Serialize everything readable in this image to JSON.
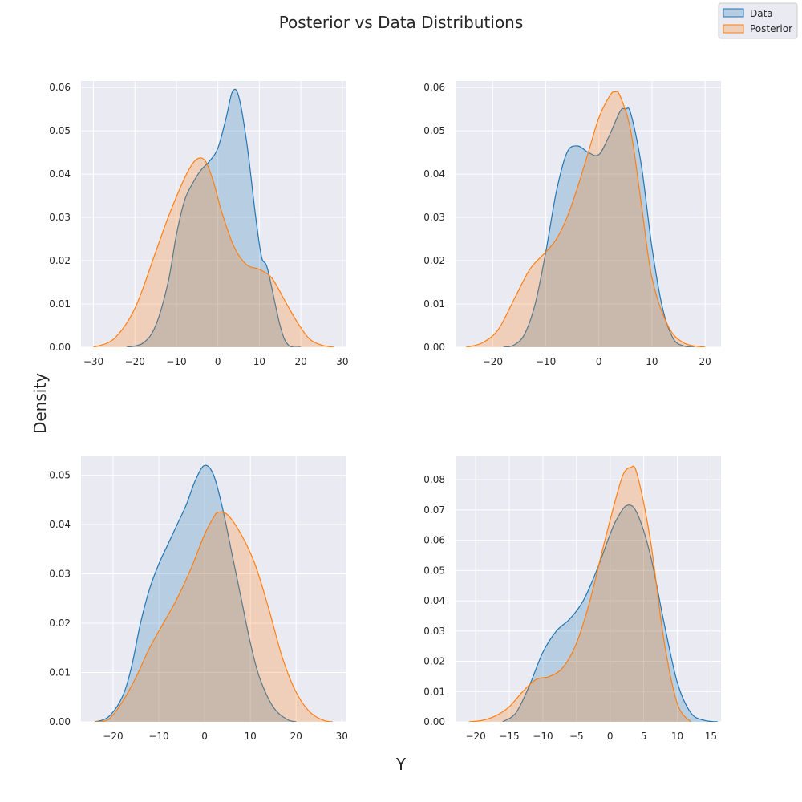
{
  "figure": {
    "title": "Posterior vs Data Distributions",
    "xlabel": "Y",
    "ylabel": "Density"
  },
  "legend": {
    "placement": "top-right",
    "items": [
      {
        "label": "Data",
        "color": "#1f77b4"
      },
      {
        "label": "Posterior",
        "color": "#ff7f0e"
      }
    ]
  },
  "colors": {
    "data": "#1f77b4",
    "posterior": "#ff7f0e",
    "axes_bg": "#eaeaf2",
    "grid": "#ffffff"
  },
  "chart_data": [
    {
      "type": "area",
      "grid": true,
      "xlim": [
        -33,
        31
      ],
      "ylim": [
        0,
        0.0615
      ],
      "xticks": [
        -30,
        -20,
        -10,
        0,
        10,
        20,
        30
      ],
      "xtick_labels": [
        "−30",
        "−20",
        "−10",
        "0",
        "10",
        "20",
        "30"
      ],
      "yticks": [
        0,
        0.01,
        0.02,
        0.03,
        0.04,
        0.05,
        0.06
      ],
      "ytick_labels": [
        "0.00",
        "0.01",
        "0.02",
        "0.03",
        "0.04",
        "0.05",
        "0.06"
      ],
      "series": [
        {
          "name": "Data",
          "x": [
            -22,
            -18,
            -15,
            -12,
            -10,
            -8,
            -6,
            -4,
            -2,
            0,
            2,
            3.5,
            5,
            7,
            9,
            10.5,
            12,
            15,
            17,
            20
          ],
          "y": [
            0,
            0.001,
            0.005,
            0.015,
            0.026,
            0.034,
            0.038,
            0.041,
            0.043,
            0.046,
            0.053,
            0.059,
            0.058,
            0.047,
            0.031,
            0.021,
            0.018,
            0.005,
            0.0005,
            0
          ]
        },
        {
          "name": "Posterior",
          "x": [
            -30,
            -25,
            -20,
            -15,
            -12,
            -9,
            -7,
            -5,
            -3,
            -1,
            1,
            4,
            7,
            10,
            13,
            16,
            19,
            22,
            25,
            28
          ],
          "y": [
            0,
            0.002,
            0.009,
            0.022,
            0.03,
            0.037,
            0.041,
            0.0435,
            0.043,
            0.038,
            0.031,
            0.023,
            0.019,
            0.018,
            0.016,
            0.011,
            0.006,
            0.002,
            0.0005,
            0
          ]
        }
      ]
    },
    {
      "type": "area",
      "grid": true,
      "xlim": [
        -27,
        23
      ],
      "ylim": [
        0,
        0.0615
      ],
      "xticks": [
        -20,
        -10,
        0,
        10,
        20
      ],
      "xtick_labels": [
        "−20",
        "−10",
        "0",
        "10",
        "20"
      ],
      "yticks": [
        0,
        0.01,
        0.02,
        0.03,
        0.04,
        0.05,
        0.06
      ],
      "ytick_labels": [
        "0.00",
        "0.01",
        "0.02",
        "0.03",
        "0.04",
        "0.05",
        "0.06"
      ],
      "series": [
        {
          "name": "Data",
          "x": [
            -18,
            -16,
            -14,
            -12,
            -10,
            -8,
            -6,
            -4,
            -2,
            0,
            2,
            4,
            5,
            6,
            8,
            10,
            12,
            14,
            16,
            18
          ],
          "y": [
            0,
            0.0005,
            0.003,
            0.01,
            0.022,
            0.036,
            0.045,
            0.0465,
            0.045,
            0.0445,
            0.049,
            0.0545,
            0.055,
            0.054,
            0.042,
            0.023,
            0.009,
            0.002,
            0.0003,
            0
          ]
        },
        {
          "name": "Posterior",
          "x": [
            -25,
            -22,
            -19,
            -16,
            -13,
            -10,
            -8,
            -6,
            -4,
            -2,
            0,
            2,
            3,
            4,
            6,
            8,
            10,
            13,
            16,
            20
          ],
          "y": [
            0,
            0.001,
            0.004,
            0.011,
            0.018,
            0.022,
            0.025,
            0.03,
            0.037,
            0.045,
            0.053,
            0.058,
            0.059,
            0.058,
            0.05,
            0.033,
            0.016,
            0.005,
            0.001,
            0
          ]
        }
      ]
    },
    {
      "type": "area",
      "grid": true,
      "xlim": [
        -27,
        31
      ],
      "ylim": [
        0,
        0.054
      ],
      "xticks": [
        -20,
        -10,
        0,
        10,
        20,
        30
      ],
      "xtick_labels": [
        "−20",
        "−10",
        "0",
        "10",
        "20",
        "30"
      ],
      "yticks": [
        0,
        0.01,
        0.02,
        0.03,
        0.04,
        0.05
      ],
      "ytick_labels": [
        "0.00",
        "0.01",
        "0.02",
        "0.03",
        "0.04",
        "0.05"
      ],
      "series": [
        {
          "name": "Data",
          "x": [
            -24,
            -21,
            -18,
            -16,
            -14,
            -12,
            -10,
            -8,
            -6,
            -4,
            -2,
            0,
            2,
            4,
            6,
            8,
            10,
            12,
            15,
            18,
            20
          ],
          "y": [
            0,
            0.001,
            0.005,
            0.011,
            0.02,
            0.027,
            0.032,
            0.036,
            0.04,
            0.044,
            0.049,
            0.052,
            0.05,
            0.043,
            0.034,
            0.025,
            0.016,
            0.009,
            0.003,
            0.0005,
            0
          ]
        },
        {
          "name": "Posterior",
          "x": [
            -24,
            -21,
            -18,
            -15,
            -12,
            -9,
            -6,
            -3,
            0,
            2,
            3,
            5,
            8,
            11,
            14,
            17,
            20,
            23,
            26,
            28
          ],
          "y": [
            0,
            0.0005,
            0.004,
            0.009,
            0.015,
            0.02,
            0.025,
            0.031,
            0.038,
            0.0415,
            0.0425,
            0.042,
            0.038,
            0.032,
            0.023,
            0.013,
            0.006,
            0.002,
            0.0003,
            0
          ]
        }
      ]
    },
    {
      "type": "area",
      "grid": true,
      "xlim": [
        -23,
        16.5
      ],
      "ylim": [
        0,
        0.088
      ],
      "xticks": [
        -20,
        -15,
        -10,
        -5,
        0,
        5,
        10,
        15
      ],
      "xtick_labels": [
        "−20",
        "−15",
        "−10",
        "−5",
        "0",
        "5",
        "10",
        "15"
      ],
      "yticks": [
        0,
        0.01,
        0.02,
        0.03,
        0.04,
        0.05,
        0.06,
        0.07,
        0.08
      ],
      "ytick_labels": [
        "0.00",
        "0.01",
        "0.02",
        "0.03",
        "0.04",
        "0.05",
        "0.06",
        "0.07",
        "0.08"
      ],
      "series": [
        {
          "name": "Data",
          "x": [
            -16,
            -14,
            -12,
            -10,
            -8,
            -6,
            -4,
            -2,
            0,
            1,
            2.5,
            4,
            6,
            8,
            10,
            12,
            14,
            16
          ],
          "y": [
            0,
            0.003,
            0.012,
            0.023,
            0.03,
            0.034,
            0.04,
            0.05,
            0.062,
            0.067,
            0.0715,
            0.069,
            0.055,
            0.033,
            0.013,
            0.003,
            0.0005,
            0
          ]
        },
        {
          "name": "Posterior",
          "x": [
            -21,
            -19,
            -17,
            -15,
            -13,
            -11,
            -9,
            -7,
            -5,
            -3,
            -1,
            1,
            2,
            3,
            4,
            6,
            8,
            10,
            12
          ],
          "y": [
            0,
            0.0005,
            0.002,
            0.005,
            0.01,
            0.014,
            0.015,
            0.018,
            0.026,
            0.04,
            0.058,
            0.075,
            0.082,
            0.084,
            0.082,
            0.06,
            0.027,
            0.006,
            0
          ]
        }
      ]
    }
  ]
}
